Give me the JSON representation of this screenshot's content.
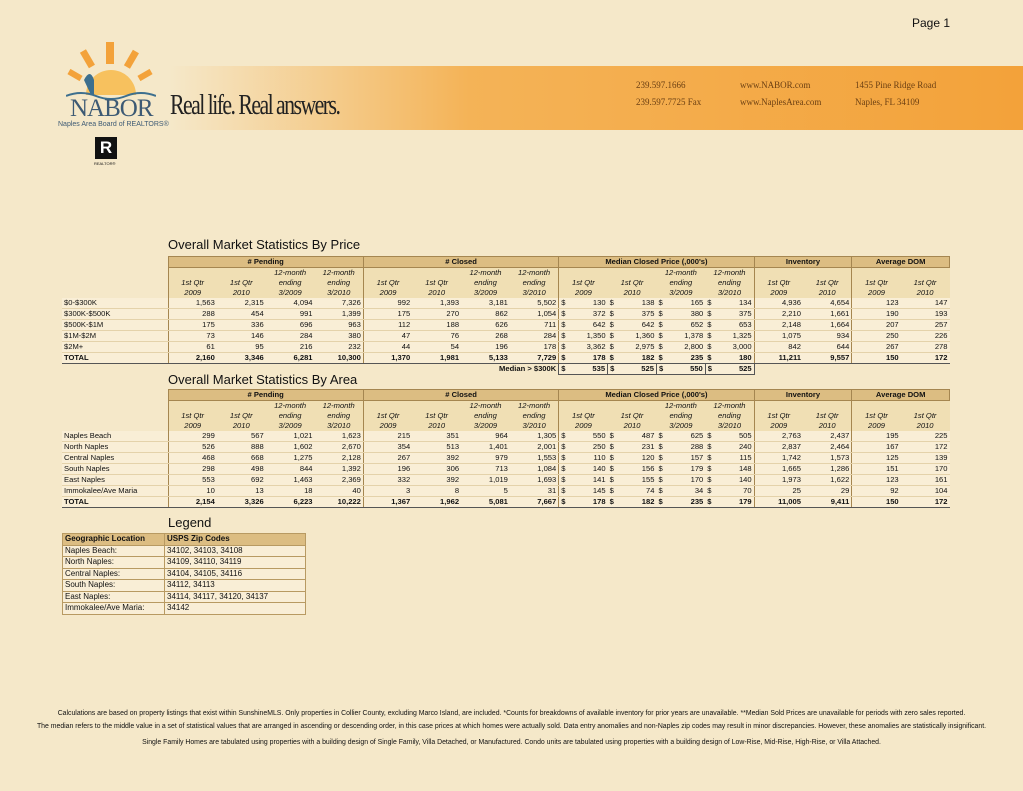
{
  "page": "Page 1",
  "header": {
    "logo": "NABOR",
    "org": "Naples Area Board of REALTORS®",
    "realtor_mark": "R",
    "realtor_label": "REALTOR®",
    "tagline": "Real life. Real answers.",
    "phone": "239.597.1666",
    "fax": "239.597.7725 Fax",
    "web1": "www.NABOR.com",
    "web2": "www.NaplesArea.com",
    "address1": "1455 Pine Ridge Road",
    "address2": "Naples, FL 34109"
  },
  "currency": "$",
  "table1": {
    "title": "Overall Market Statistics By Price",
    "groups": [
      "# Pending",
      "# Closed",
      "Median Closed Price (,000's)",
      "Inventory",
      "Average DOM"
    ],
    "columns": [
      {
        "lines": [
          "1st Qtr",
          "2009"
        ]
      },
      {
        "lines": [
          "1st Qtr",
          "2010"
        ]
      },
      {
        "lines": [
          "12-month",
          "ending",
          "3/2009"
        ]
      },
      {
        "lines": [
          "12-month",
          "ending",
          "3/2010"
        ]
      },
      {
        "lines": [
          "1st Qtr",
          "2009"
        ]
      },
      {
        "lines": [
          "1st Qtr",
          "2010"
        ]
      },
      {
        "lines": [
          "12-month",
          "ending",
          "3/2009"
        ]
      },
      {
        "lines": [
          "12-month",
          "ending",
          "3/2010"
        ]
      },
      {
        "lines": [
          "1st Qtr",
          "2009"
        ]
      },
      {
        "lines": [
          "1st Qtr",
          "2010"
        ]
      },
      {
        "lines": [
          "12-month",
          "ending",
          "3/2009"
        ]
      },
      {
        "lines": [
          "12-month",
          "ending",
          "3/2010"
        ]
      },
      {
        "lines": [
          "1st Qtr",
          "2009"
        ]
      },
      {
        "lines": [
          "1st Qtr",
          "2010"
        ]
      },
      {
        "lines": [
          "1st Qtr",
          "2009"
        ]
      },
      {
        "lines": [
          "1st Qtr",
          "2010"
        ]
      }
    ],
    "rows": [
      {
        "label": "$0-$300K",
        "values": [
          "1,563",
          "2,315",
          "4,094",
          "7,326",
          "992",
          "1,393",
          "3,181",
          "5,502",
          "130",
          "138",
          "165",
          "134",
          "4,936",
          "4,654",
          "123",
          "147"
        ]
      },
      {
        "label": "$300K-$500K",
        "values": [
          "288",
          "454",
          "991",
          "1,399",
          "175",
          "270",
          "862",
          "1,054",
          "372",
          "375",
          "380",
          "375",
          "2,210",
          "1,661",
          "190",
          "193"
        ]
      },
      {
        "label": "$500K-$1M",
        "values": [
          "175",
          "336",
          "696",
          "963",
          "112",
          "188",
          "626",
          "711",
          "642",
          "642",
          "652",
          "653",
          "2,148",
          "1,664",
          "207",
          "257"
        ]
      },
      {
        "label": "$1M-$2M",
        "values": [
          "73",
          "146",
          "284",
          "380",
          "47",
          "76",
          "268",
          "284",
          "1,350",
          "1,360",
          "1,378",
          "1,325",
          "1,075",
          "934",
          "250",
          "226"
        ]
      },
      {
        "label": "$2M+",
        "values": [
          "61",
          "95",
          "216",
          "232",
          "44",
          "54",
          "196",
          "178",
          "3,362",
          "2,975",
          "2,800",
          "3,000",
          "842",
          "644",
          "267",
          "278"
        ]
      }
    ],
    "total": {
      "label": "TOTAL",
      "values": [
        "2,160",
        "3,346",
        "6,281",
        "10,300",
        "1,370",
        "1,981",
        "5,133",
        "7,729",
        "178",
        "182",
        "235",
        "180",
        "11,211",
        "9,557",
        "150",
        "172"
      ]
    },
    "median_row": {
      "label": "Median > $300K",
      "values": [
        "535",
        "525",
        "550",
        "525"
      ]
    }
  },
  "table2": {
    "title": "Overall Market Statistics By Area",
    "groups": [
      "# Pending",
      "# Closed",
      "Median Closed Price (,000's)",
      "Inventory",
      "Average DOM"
    ],
    "columns": [
      {
        "lines": [
          "1st Qtr",
          "2009"
        ]
      },
      {
        "lines": [
          "1st Qtr",
          "2010"
        ]
      },
      {
        "lines": [
          "12-month",
          "ending",
          "3/2009"
        ]
      },
      {
        "lines": [
          "12-month",
          "ending",
          "3/2010"
        ]
      },
      {
        "lines": [
          "1st Qtr",
          "2009"
        ]
      },
      {
        "lines": [
          "1st Qtr",
          "2010"
        ]
      },
      {
        "lines": [
          "12-month",
          "ending",
          "3/2009"
        ]
      },
      {
        "lines": [
          "12-month",
          "ending",
          "3/2010"
        ]
      },
      {
        "lines": [
          "1st Qtr",
          "2009"
        ]
      },
      {
        "lines": [
          "1st Qtr",
          "2010"
        ]
      },
      {
        "lines": [
          "12-month",
          "ending",
          "3/2009"
        ]
      },
      {
        "lines": [
          "12-month",
          "ending",
          "3/2010"
        ]
      },
      {
        "lines": [
          "1st Qtr",
          "2009"
        ]
      },
      {
        "lines": [
          "1st Qtr",
          "2010"
        ]
      },
      {
        "lines": [
          "1st Qtr",
          "2009"
        ]
      },
      {
        "lines": [
          "1st Qtr",
          "2010"
        ]
      }
    ],
    "rows": [
      {
        "label": "Naples Beach",
        "values": [
          "299",
          "567",
          "1,021",
          "1,623",
          "215",
          "351",
          "964",
          "1,305",
          "550",
          "487",
          "625",
          "505",
          "2,763",
          "2,437",
          "195",
          "225"
        ]
      },
      {
        "label": "North Naples",
        "values": [
          "526",
          "888",
          "1,602",
          "2,670",
          "354",
          "513",
          "1,401",
          "2,001",
          "250",
          "231",
          "288",
          "240",
          "2,837",
          "2,464",
          "167",
          "172"
        ]
      },
      {
        "label": "Central Naples",
        "values": [
          "468",
          "668",
          "1,275",
          "2,128",
          "267",
          "392",
          "979",
          "1,553",
          "110",
          "120",
          "157",
          "115",
          "1,742",
          "1,573",
          "125",
          "139"
        ]
      },
      {
        "label": "South Naples",
        "values": [
          "298",
          "498",
          "844",
          "1,392",
          "196",
          "306",
          "713",
          "1,084",
          "140",
          "156",
          "179",
          "148",
          "1,665",
          "1,286",
          "151",
          "170"
        ]
      },
      {
        "label": "East Naples",
        "values": [
          "553",
          "692",
          "1,463",
          "2,369",
          "332",
          "392",
          "1,019",
          "1,693",
          "141",
          "155",
          "170",
          "140",
          "1,973",
          "1,622",
          "123",
          "161"
        ]
      },
      {
        "label": "Immokalee/Ave Maria",
        "values": [
          "10",
          "13",
          "18",
          "40",
          "3",
          "8",
          "5",
          "31",
          "145",
          "74",
          "34",
          "70",
          "25",
          "29",
          "92",
          "104"
        ]
      }
    ],
    "total": {
      "label": "TOTAL",
      "values": [
        "2,154",
        "3,326",
        "6,223",
        "10,222",
        "1,367",
        "1,962",
        "5,081",
        "7,667",
        "178",
        "182",
        "235",
        "179",
        "11,005",
        "9,411",
        "150",
        "172"
      ]
    }
  },
  "legend": {
    "title": "Legend",
    "headers": [
      "Geographic Location",
      "USPS Zip Codes"
    ],
    "rows": [
      [
        "Naples Beach:",
        "34102, 34103, 34108"
      ],
      [
        "North Naples:",
        "34109, 34110, 34119"
      ],
      [
        "Central Naples:",
        "34104, 34105, 34116"
      ],
      [
        "South Naples:",
        "34112, 34113"
      ],
      [
        "East Naples:",
        "34114, 34117, 34120, 34137"
      ],
      [
        "Immokalee/Ave Maria:",
        "34142"
      ]
    ]
  },
  "footnotes": [
    "Calculations are based on property listings that exist within SunshineMLS. Only properties in Collier County, excluding Marco Island, are included. *Counts for breakdowns of available inventory for prior years are unavailable. **Median Sold Prices are unavailable for periods with zero sales reported.",
    "The median refers to the middle value in a set of statistical values that are arranged in ascending or descending order, in this case prices at which homes were actually sold. Data entry anomalies and non-Naples zip codes may result in minor discrepancies. However, these anomalies are statistically insignificant.",
    "Single Family Homes are tabulated using properties with a building design of Single Family, Villa Detached, or Manufactured. Condo  units are tabulated using properties with a building design of Low-Rise, Mid-Rise, High-Rise, or Villa Attached."
  ]
}
